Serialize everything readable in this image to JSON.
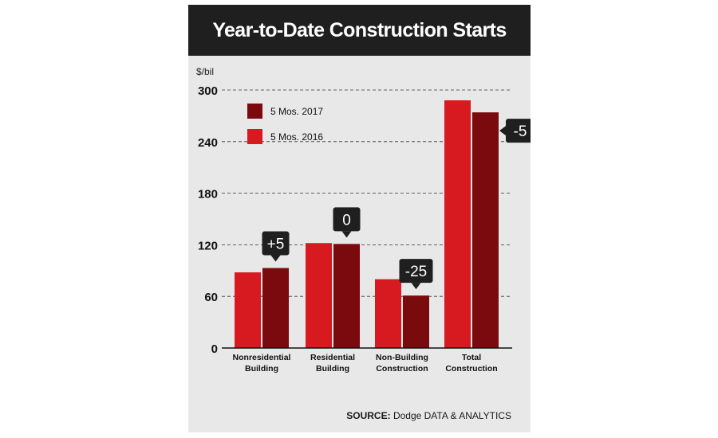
{
  "chart_data": {
    "type": "bar",
    "title": "Year-to-Date Construction Starts",
    "ylabel": "$/bil",
    "ylim": [
      0,
      300
    ],
    "yticks": [
      0,
      60,
      120,
      180,
      240,
      300
    ],
    "grid": "dashed horizontal",
    "legend_position": "top-left",
    "categories": [
      [
        "Nonresidential",
        "Building"
      ],
      [
        "Residential",
        "Building"
      ],
      [
        "Non-Building",
        "Construction"
      ],
      [
        "Total",
        "Construction"
      ]
    ],
    "series": [
      {
        "name": "5 Mos. 2016",
        "color": "#d71920",
        "values": [
          88,
          122,
          80,
          288
        ]
      },
      {
        "name": "5 Mos. 2017",
        "color": "#7a0a0e",
        "values": [
          93,
          121,
          61,
          274
        ]
      }
    ],
    "annotations": [
      "+5",
      "0",
      "-25",
      "-5"
    ],
    "legend_order": [
      1,
      0
    ],
    "source_label": "SOURCE:",
    "source_text": "Dodge DATA & ANALYTICS"
  }
}
